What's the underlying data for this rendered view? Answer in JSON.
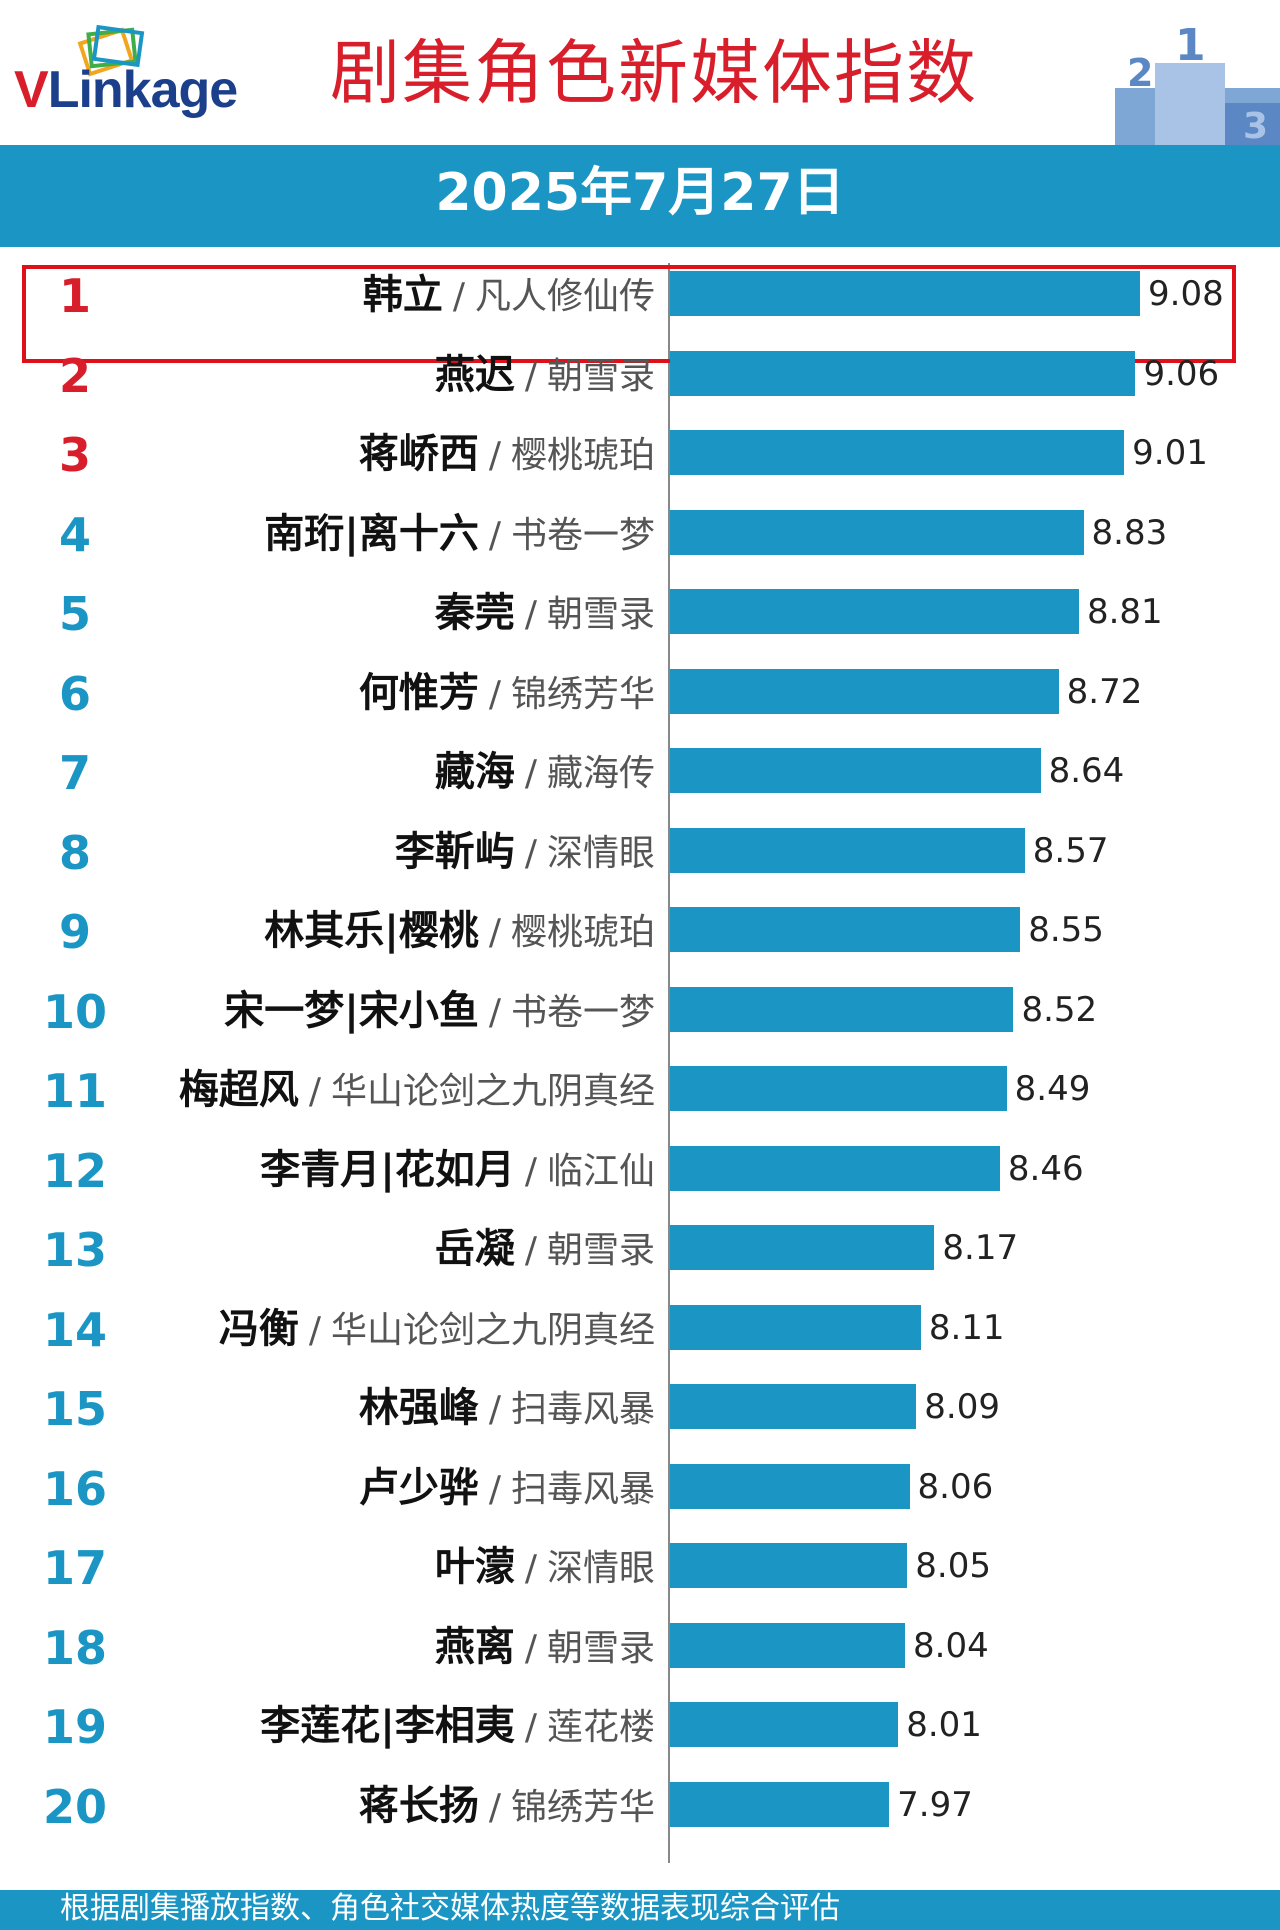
{
  "header": {
    "logo_text_v": "V",
    "logo_text_rest": "Linkage",
    "title": "剧集角色新媒体指数",
    "podium_numbers": [
      "2",
      "1",
      "3"
    ]
  },
  "date": "2025年7月27日",
  "colors": {
    "accent": "#1b96c4",
    "red": "#d81e2a",
    "highlight_border": "#e0101a"
  },
  "chart_data": {
    "type": "bar",
    "orientation": "horizontal",
    "title": "剧集角色新媒体指数",
    "subtitle": "2025年7月27日",
    "xlim": [
      7.0,
      9.4
    ],
    "grid": false,
    "highlighted_rank": 1,
    "rows": [
      {
        "rank": "1",
        "name": "韩立",
        "show": "凡人修仙传",
        "value": 9.08,
        "label": "9.08"
      },
      {
        "rank": "2",
        "name": "燕迟",
        "show": "朝雪录",
        "value": 9.06,
        "label": "9.06"
      },
      {
        "rank": "3",
        "name": "蒋峤西",
        "show": "樱桃琥珀",
        "value": 9.01,
        "label": "9.01"
      },
      {
        "rank": "4",
        "name": "南珩|离十六",
        "show": "书卷一梦",
        "value": 8.83,
        "label": "8.83"
      },
      {
        "rank": "5",
        "name": "秦莞",
        "show": "朝雪录",
        "value": 8.81,
        "label": "8.81"
      },
      {
        "rank": "6",
        "name": "何惟芳",
        "show": "锦绣芳华",
        "value": 8.72,
        "label": "8.72"
      },
      {
        "rank": "7",
        "name": "藏海",
        "show": "藏海传",
        "value": 8.64,
        "label": "8.64"
      },
      {
        "rank": "8",
        "name": "李靳屿",
        "show": "深情眼",
        "value": 8.57,
        "label": "8.57"
      },
      {
        "rank": "9",
        "name": "林其乐|樱桃",
        "show": "樱桃琥珀",
        "value": 8.55,
        "label": "8.55"
      },
      {
        "rank": "10",
        "name": "宋一梦|宋小鱼",
        "show": "书卷一梦",
        "value": 8.52,
        "label": "8.52"
      },
      {
        "rank": "11",
        "name": "梅超风",
        "show": "华山论剑之九阴真经",
        "value": 8.49,
        "label": "8.49"
      },
      {
        "rank": "12",
        "name": "李青月|花如月",
        "show": "临江仙",
        "value": 8.46,
        "label": "8.46"
      },
      {
        "rank": "13",
        "name": "岳凝",
        "show": "朝雪录",
        "value": 8.17,
        "label": "8.17"
      },
      {
        "rank": "14",
        "name": "冯衡",
        "show": "华山论剑之九阴真经",
        "value": 8.11,
        "label": "8.11"
      },
      {
        "rank": "15",
        "name": "林强峰",
        "show": "扫毒风暴",
        "value": 8.09,
        "label": "8.09"
      },
      {
        "rank": "16",
        "name": "卢少骅",
        "show": "扫毒风暴",
        "value": 8.06,
        "label": "8.06"
      },
      {
        "rank": "17",
        "name": "叶濛",
        "show": "深情眼",
        "value": 8.05,
        "label": "8.05"
      },
      {
        "rank": "18",
        "name": "燕离",
        "show": "朝雪录",
        "value": 8.04,
        "label": "8.04"
      },
      {
        "rank": "19",
        "name": "李莲花|李相夷",
        "show": "莲花楼",
        "value": 8.01,
        "label": "8.01"
      },
      {
        "rank": "20",
        "name": "蒋长扬",
        "show": "锦绣芳华",
        "value": 7.97,
        "label": "7.97"
      }
    ]
  },
  "footer": {
    "note": "根据剧集播放指数、角色社交媒体热度等数据表现综合评估"
  }
}
